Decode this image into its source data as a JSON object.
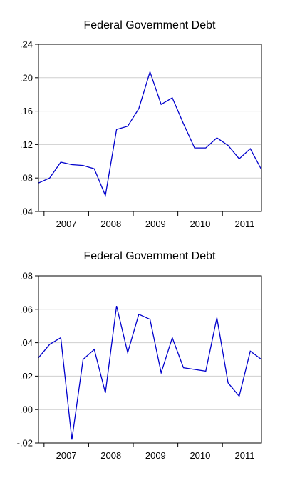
{
  "chart_data": [
    {
      "type": "line",
      "title": "Federal Government Debt",
      "x_labels": [
        "2007",
        "2008",
        "2009",
        "2010",
        "2011"
      ],
      "y_ticks": [
        ".24",
        ".20",
        ".16",
        ".12",
        ".08",
        ".04"
      ],
      "ylim": [
        0.04,
        0.24
      ],
      "grid": true,
      "line_color": "#0000cc",
      "x": [
        "2006Q4",
        "2007Q1",
        "2007Q2",
        "2007Q3",
        "2007Q4",
        "2008Q1",
        "2008Q2",
        "2008Q3",
        "2008Q4",
        "2009Q1",
        "2009Q2",
        "2009Q3",
        "2009Q4",
        "2010Q1",
        "2010Q2",
        "2010Q3",
        "2010Q4",
        "2011Q1",
        "2011Q2",
        "2011Q3",
        "2011Q4"
      ],
      "values": [
        0.074,
        0.08,
        0.099,
        0.096,
        0.095,
        0.091,
        0.059,
        0.138,
        0.142,
        0.163,
        0.207,
        0.168,
        0.176,
        0.145,
        0.116,
        0.116,
        0.128,
        0.119,
        0.103,
        0.115,
        0.09
      ]
    },
    {
      "type": "line",
      "title": "Federal Government Debt",
      "x_labels": [
        "2007",
        "2008",
        "2009",
        "2010",
        "2011"
      ],
      "y_ticks": [
        ".08",
        ".06",
        ".04",
        ".02",
        ".00",
        "-.02"
      ],
      "ylim": [
        -0.02,
        0.08
      ],
      "grid": true,
      "line_color": "#0000cc",
      "x": [
        "2006Q4",
        "2007Q1",
        "2007Q2",
        "2007Q3",
        "2007Q4",
        "2008Q1",
        "2008Q2",
        "2008Q3",
        "2008Q4",
        "2009Q1",
        "2009Q2",
        "2009Q3",
        "2009Q4",
        "2010Q1",
        "2010Q2",
        "2010Q3",
        "2010Q4",
        "2011Q1",
        "2011Q2",
        "2011Q3",
        "2011Q4"
      ],
      "values": [
        0.031,
        0.039,
        0.043,
        -0.018,
        0.03,
        0.036,
        0.01,
        0.062,
        0.034,
        0.057,
        0.054,
        0.022,
        0.043,
        0.025,
        0.024,
        0.023,
        0.055,
        0.016,
        0.008,
        0.035,
        0.03
      ]
    }
  ]
}
